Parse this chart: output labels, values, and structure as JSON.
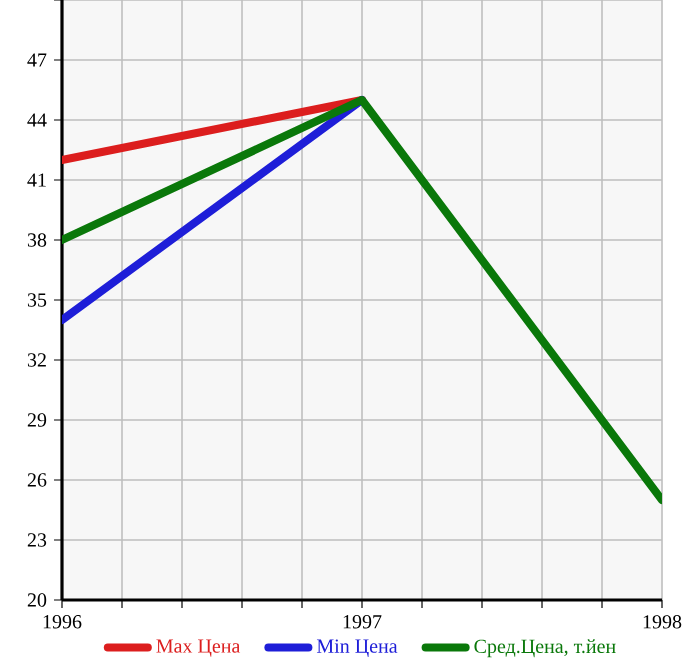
{
  "chart_data": {
    "type": "line",
    "x": [
      1996,
      1997,
      1998
    ],
    "series": [
      {
        "name": "Max Цена",
        "color": "#dc1e1e",
        "values": [
          42,
          45,
          null
        ]
      },
      {
        "name": "Min Цена",
        "color": "#1e1ed8",
        "values": [
          34,
          45,
          null
        ]
      },
      {
        "name": "Сред.Цена, т.йен",
        "color": "#0a780a",
        "values": [
          38,
          45,
          25
        ]
      }
    ],
    "xlim": [
      1996,
      1998
    ],
    "xticks": [
      1996,
      {
        "value": 1996.2,
        "label": null
      },
      {
        "value": 1996.4,
        "label": null
      },
      {
        "value": 1996.6,
        "label": null
      },
      {
        "value": 1996.8,
        "label": null
      },
      1997,
      {
        "value": 1997.2,
        "label": null
      },
      {
        "value": 1997.4,
        "label": null
      },
      {
        "value": 1997.6,
        "label": null
      },
      {
        "value": 1997.8,
        "label": null
      },
      1998
    ],
    "ylim": [
      20,
      50
    ],
    "yticks": [
      20,
      23,
      26,
      29,
      32,
      35,
      38,
      41,
      44,
      47,
      {
        "value": 50,
        "label": null
      }
    ],
    "grid": true,
    "legend": "bottom",
    "marker": "none",
    "line_style": "solid"
  }
}
